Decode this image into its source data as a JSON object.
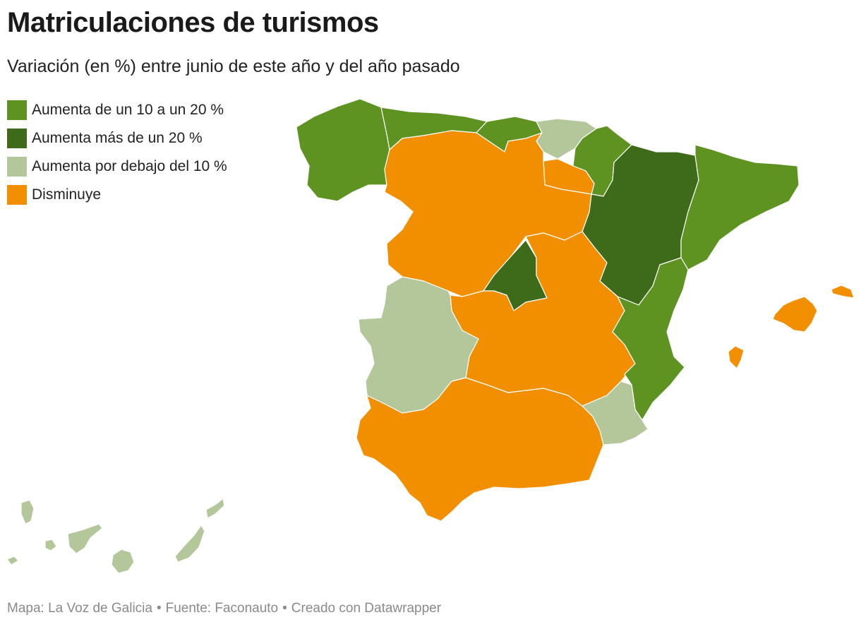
{
  "title": "Matriculaciones de turismos",
  "subtitle": "Variación (en %) entre junio de este año y del año pasado",
  "legend": [
    {
      "label": "Aumenta de un 10 a un 20 %",
      "color": "#5e9322"
    },
    {
      "label": "Aumenta más de un 20 %",
      "color": "#3d6b19"
    },
    {
      "label": "Aumenta por debajo del 10 %",
      "color": "#b4c79b"
    },
    {
      "label": "Disminuye",
      "color": "#f28f00"
    }
  ],
  "regions": [
    {
      "name": "Galicia",
      "category": "Aumenta de un 10 a un 20 %"
    },
    {
      "name": "Asturias",
      "category": "Aumenta de un 10 a un 20 %"
    },
    {
      "name": "Cantabria",
      "category": "Aumenta de un 10 a un 20 %"
    },
    {
      "name": "País Vasco",
      "category": "Aumenta por debajo del 10 %"
    },
    {
      "name": "Navarra",
      "category": "Aumenta de un 10 a un 20 %"
    },
    {
      "name": "La Rioja",
      "category": "Disminuye"
    },
    {
      "name": "Aragón",
      "category": "Aumenta más de un 20 %"
    },
    {
      "name": "Cataluña",
      "category": "Aumenta de un 10 a un 20 %"
    },
    {
      "name": "Castilla y León",
      "category": "Disminuye"
    },
    {
      "name": "Comunidad de Madrid",
      "category": "Aumenta más de un 20 %"
    },
    {
      "name": "Castilla-La Mancha",
      "category": "Disminuye"
    },
    {
      "name": "Comunidad Valenciana",
      "category": "Aumenta de un 10 a un 20 %"
    },
    {
      "name": "Extremadura",
      "category": "Aumenta por debajo del 10 %"
    },
    {
      "name": "Andalucía",
      "category": "Disminuye"
    },
    {
      "name": "Región de Murcia",
      "category": "Aumenta por debajo del 10 %"
    },
    {
      "name": "Islas Baleares",
      "category": "Disminuye"
    },
    {
      "name": "Canarias",
      "category": "Aumenta por debajo del 10 %"
    }
  ],
  "footer": {
    "map": "Mapa: La Voz de Galicia",
    "source": "Fuente: Faconauto",
    "created": "Creado con Datawrapper",
    "separator": "•"
  }
}
